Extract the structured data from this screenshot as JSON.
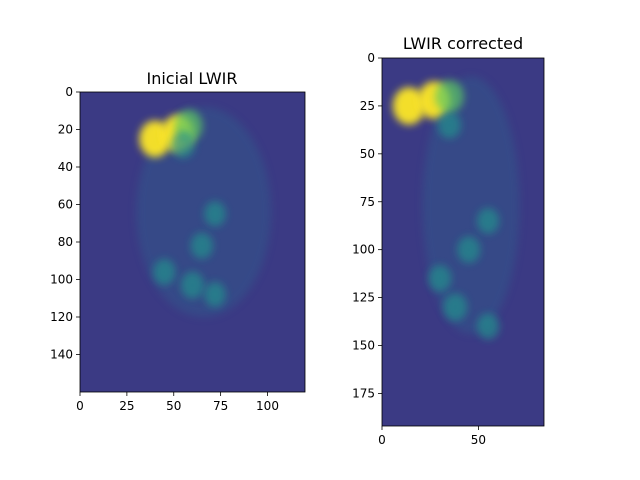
{
  "chart_data": [
    {
      "type": "heatmap",
      "title": "Inicial LWIR",
      "colormap": "viridis",
      "image_size": {
        "width": 120,
        "height": 160
      },
      "xlim": [
        0,
        120
      ],
      "ylim": [
        160,
        0
      ],
      "xticks": [
        0,
        25,
        50,
        75,
        100
      ],
      "yticks": [
        0,
        20,
        40,
        60,
        80,
        100,
        120,
        140
      ],
      "hotspots": [
        {
          "x": 40,
          "y": 25,
          "intensity": 1.0
        },
        {
          "x": 52,
          "y": 22,
          "intensity": 1.0
        },
        {
          "x": 58,
          "y": 18,
          "intensity": 0.8
        },
        {
          "x": 55,
          "y": 28,
          "intensity": 0.55
        },
        {
          "x": 72,
          "y": 65,
          "intensity": 0.45
        },
        {
          "x": 65,
          "y": 82,
          "intensity": 0.5
        },
        {
          "x": 45,
          "y": 96,
          "intensity": 0.5
        },
        {
          "x": 60,
          "y": 103,
          "intensity": 0.55
        },
        {
          "x": 72,
          "y": 108,
          "intensity": 0.45
        }
      ]
    },
    {
      "type": "heatmap",
      "title": "LWIR corrected",
      "colormap": "viridis",
      "image_size": {
        "width": 84,
        "height": 192
      },
      "xlim": [
        0,
        84
      ],
      "ylim": [
        192,
        0
      ],
      "xticks": [
        0,
        50
      ],
      "yticks": [
        0,
        25,
        50,
        75,
        100,
        125,
        150,
        175
      ],
      "hotspots": [
        {
          "x": 14,
          "y": 25,
          "intensity": 1.0
        },
        {
          "x": 27,
          "y": 22,
          "intensity": 1.0
        },
        {
          "x": 35,
          "y": 20,
          "intensity": 0.8
        },
        {
          "x": 35,
          "y": 35,
          "intensity": 0.5
        },
        {
          "x": 55,
          "y": 85,
          "intensity": 0.45
        },
        {
          "x": 45,
          "y": 100,
          "intensity": 0.5
        },
        {
          "x": 30,
          "y": 115,
          "intensity": 0.5
        },
        {
          "x": 38,
          "y": 130,
          "intensity": 0.55
        },
        {
          "x": 55,
          "y": 140,
          "intensity": 0.45
        }
      ]
    }
  ]
}
